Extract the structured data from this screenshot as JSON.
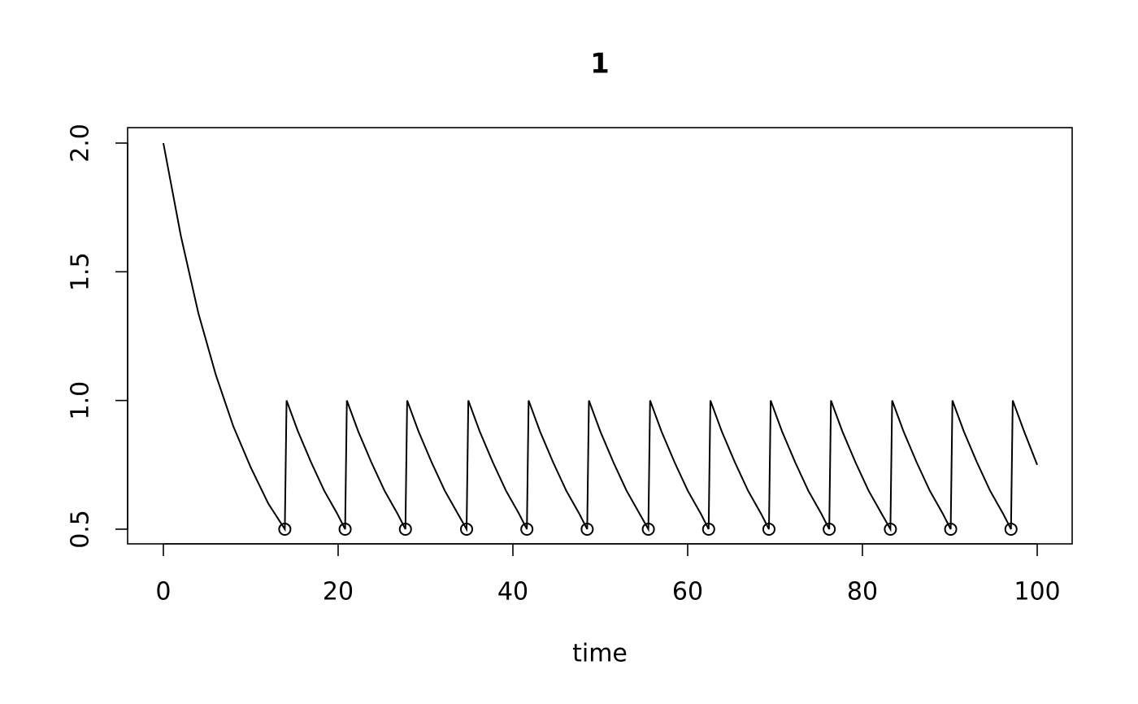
{
  "chart_data": {
    "type": "line",
    "title": "1",
    "x_label": "time",
    "xlim": [
      -4.09,
      104.0
    ],
    "ylim": [
      0.443,
      2.06
    ],
    "xticks": [
      0,
      20,
      40,
      60,
      80,
      100
    ],
    "yticks": [
      {
        "value": 0.5,
        "label": "0.5"
      },
      {
        "value": 1,
        "label": "1.0"
      },
      {
        "value": 1.5,
        "label": "1.5"
      },
      {
        "value": 2,
        "label": "2.0"
      }
    ],
    "series": [
      {
        "color": "#000000",
        "style": "line",
        "x": [
          0,
          2,
          4,
          6,
          8,
          10,
          12,
          13.9,
          14.1,
          15.4,
          16.9,
          18.4,
          19.9,
          20.8,
          21,
          22.3,
          23.8,
          25.3,
          26.8,
          27.7,
          27.9,
          29.2,
          30.7,
          32.2,
          33.7,
          34.7,
          34.9,
          36.2,
          37.7,
          39.2,
          40.7,
          41.6,
          41.8,
          43.1,
          44.6,
          46.1,
          47.6,
          48.5,
          48.7,
          50,
          51.5,
          53,
          54.5,
          55.5,
          55.7,
          57,
          58.5,
          60,
          61.5,
          62.4,
          62.6,
          63.9,
          65.4,
          66.9,
          68.4,
          69.3,
          69.5,
          70.8,
          72.3,
          73.8,
          75.3,
          76.2,
          76.4,
          77.7,
          79.2,
          80.7,
          82.2,
          83.2,
          83.4,
          84.7,
          86.2,
          87.7,
          89.2,
          90.1,
          90.3,
          91.6,
          93.1,
          94.6,
          96.1,
          97,
          97.2,
          98.5,
          100
        ],
        "values": [
          2,
          1.64,
          1.34,
          1.1,
          0.9,
          0.74,
          0.6,
          0.5,
          1,
          0.88,
          0.76,
          0.65,
          0.56,
          0.5,
          1,
          0.88,
          0.76,
          0.65,
          0.56,
          0.5,
          1,
          0.88,
          0.76,
          0.65,
          0.56,
          0.5,
          1,
          0.88,
          0.76,
          0.65,
          0.56,
          0.5,
          1,
          0.88,
          0.76,
          0.65,
          0.56,
          0.5,
          1,
          0.88,
          0.76,
          0.65,
          0.56,
          0.5,
          1,
          0.88,
          0.76,
          0.65,
          0.56,
          0.5,
          1,
          0.88,
          0.76,
          0.65,
          0.56,
          0.5,
          1,
          0.88,
          0.76,
          0.65,
          0.56,
          0.5,
          1,
          0.88,
          0.76,
          0.65,
          0.56,
          0.5,
          1,
          0.88,
          0.76,
          0.65,
          0.56,
          0.5,
          1,
          0.88,
          0.76,
          0.65,
          0.56,
          0.5,
          1,
          0.88,
          0.75
        ]
      },
      {
        "color": "#000000",
        "style": "points",
        "marker": "open-circle",
        "x": [
          13.9,
          20.8,
          27.7,
          34.7,
          41.6,
          48.5,
          55.5,
          62.4,
          69.3,
          76.2,
          83.2,
          90.1,
          97
        ],
        "values": [
          0.5,
          0.5,
          0.5,
          0.5,
          0.5,
          0.5,
          0.5,
          0.5,
          0.5,
          0.5,
          0.5,
          0.5,
          0.5
        ]
      }
    ]
  }
}
